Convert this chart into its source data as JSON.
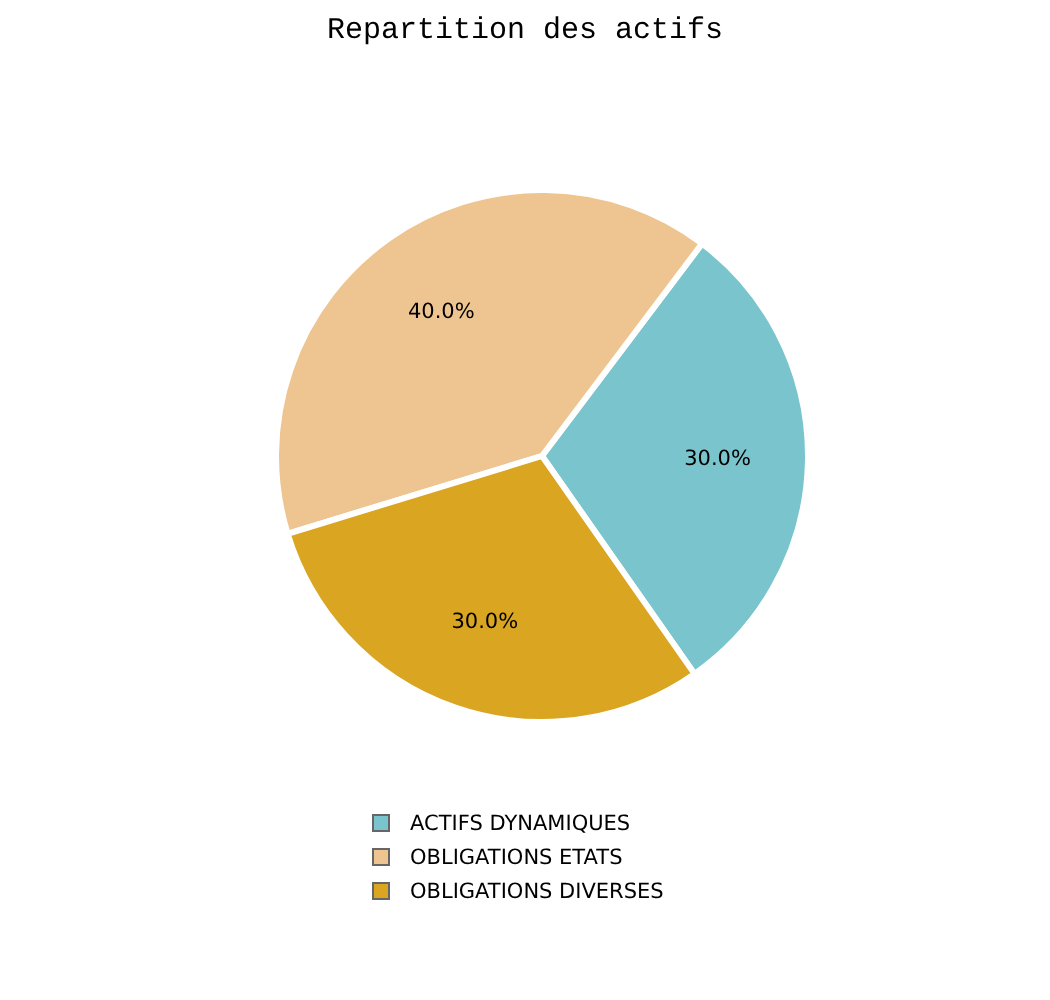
{
  "chart_data": {
    "type": "pie",
    "title": "Repartition des actifs",
    "categories": [
      "ACTIFS DYNAMIQUES",
      "OBLIGATIONS ETATS",
      "OBLIGATIONS DIVERSES"
    ],
    "values": [
      30,
      40,
      30
    ],
    "colors": [
      "#7ac5cd",
      "#eec591",
      "#daa520"
    ],
    "value_labels": [
      "30.0%",
      "40.0%",
      "30.0%"
    ],
    "legend": "bottom"
  }
}
